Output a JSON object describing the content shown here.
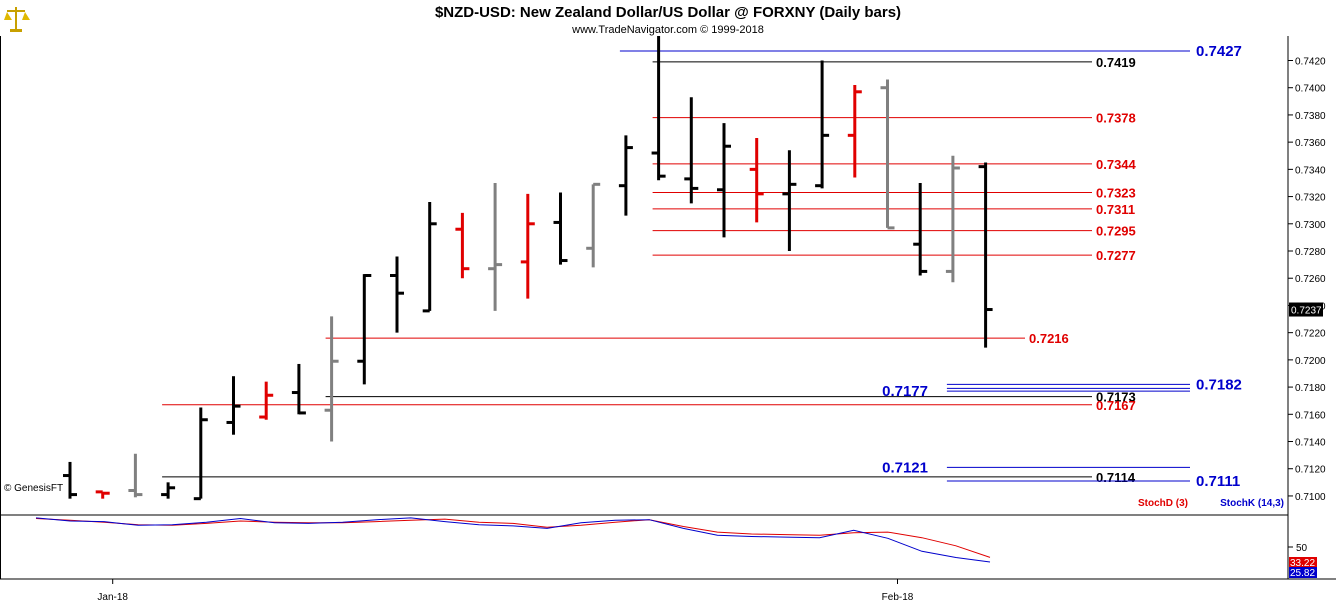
{
  "header": {
    "title": "$NZD-USD:  New Zealand Dollar/US Dollar @ FORXNY  (Daily bars)",
    "subtitle": "www.TradeNavigator.com © 1999-2018"
  },
  "watermark": "© GenesisFT",
  "colors": {
    "black": "#000000",
    "red": "#e00000",
    "gray": "#808080",
    "blue": "#0000cc",
    "stochD": "#e00000",
    "stochK": "#0000cc"
  },
  "chart_data": [
    {
      "type": "ohlc",
      "title": "$NZD-USD:  New Zealand Dollar/US Dollar @ FORXNY  (Daily bars)",
      "ylim": [
        0.7086,
        0.7438
      ],
      "y_ticks": [
        "0.7100",
        "0.7120",
        "0.7140",
        "0.7160",
        "0.7180",
        "0.7200",
        "0.7220",
        "0.7240",
        "0.7260",
        "0.7280",
        "0.7300",
        "0.7320",
        "0.7340",
        "0.7360",
        "0.7380",
        "0.7400",
        "0.7420"
      ],
      "last_price": "0.7237",
      "x_labels": [
        {
          "label": "Jan-18",
          "bar": 1
        },
        {
          "label": "Feb-18",
          "bar": 25
        }
      ],
      "bars": [
        {
          "o": 0.7115,
          "h": 0.7125,
          "l": 0.7098,
          "c": 0.7101,
          "color": "black"
        },
        {
          "o": 0.7103,
          "h": 0.7103,
          "l": 0.7098,
          "c": 0.7102,
          "color": "red"
        },
        {
          "o": 0.7104,
          "h": 0.7131,
          "l": 0.7099,
          "c": 0.7101,
          "color": "gray"
        },
        {
          "o": 0.7101,
          "h": 0.711,
          "l": 0.7098,
          "c": 0.7106,
          "color": "black"
        },
        {
          "o": 0.7098,
          "h": 0.7165,
          "l": 0.7098,
          "c": 0.7156,
          "color": "black"
        },
        {
          "o": 0.7154,
          "h": 0.7188,
          "l": 0.7145,
          "c": 0.7166,
          "color": "black"
        },
        {
          "o": 0.7158,
          "h": 0.7184,
          "l": 0.7156,
          "c": 0.7174,
          "color": "red"
        },
        {
          "o": 0.7176,
          "h": 0.7197,
          "l": 0.716,
          "c": 0.7161,
          "color": "black"
        },
        {
          "o": 0.7163,
          "h": 0.7232,
          "l": 0.714,
          "c": 0.7199,
          "color": "gray"
        },
        {
          "o": 0.7199,
          "h": 0.7263,
          "l": 0.7182,
          "c": 0.7262,
          "color": "black"
        },
        {
          "o": 0.7262,
          "h": 0.7276,
          "l": 0.722,
          "c": 0.7249,
          "color": "black"
        },
        {
          "o": 0.7236,
          "h": 0.7316,
          "l": 0.7236,
          "c": 0.73,
          "color": "black"
        },
        {
          "o": 0.7296,
          "h": 0.7308,
          "l": 0.726,
          "c": 0.7267,
          "color": "red"
        },
        {
          "o": 0.7267,
          "h": 0.733,
          "l": 0.7236,
          "c": 0.727,
          "color": "gray"
        },
        {
          "o": 0.7272,
          "h": 0.7322,
          "l": 0.7245,
          "c": 0.73,
          "color": "red"
        },
        {
          "o": 0.7301,
          "h": 0.7323,
          "l": 0.727,
          "c": 0.7273,
          "color": "black"
        },
        {
          "o": 0.7282,
          "h": 0.7329,
          "l": 0.7268,
          "c": 0.7329,
          "color": "gray"
        },
        {
          "o": 0.7328,
          "h": 0.7365,
          "l": 0.7306,
          "c": 0.7356,
          "color": "black"
        },
        {
          "o": 0.7352,
          "h": 0.7438,
          "l": 0.7332,
          "c": 0.7335,
          "color": "black"
        },
        {
          "o": 0.7333,
          "h": 0.7393,
          "l": 0.7315,
          "c": 0.7326,
          "color": "black"
        },
        {
          "o": 0.7325,
          "h": 0.7374,
          "l": 0.729,
          "c": 0.7357,
          "color": "black"
        },
        {
          "o": 0.734,
          "h": 0.7363,
          "l": 0.7301,
          "c": 0.7322,
          "color": "red"
        },
        {
          "o": 0.7322,
          "h": 0.7354,
          "l": 0.728,
          "c": 0.7329,
          "color": "black"
        },
        {
          "o": 0.7328,
          "h": 0.742,
          "l": 0.7326,
          "c": 0.7365,
          "color": "black"
        },
        {
          "o": 0.7365,
          "h": 0.7402,
          "l": 0.7334,
          "c": 0.7397,
          "color": "red"
        },
        {
          "o": 0.74,
          "h": 0.7406,
          "l": 0.7297,
          "c": 0.7297,
          "color": "gray"
        },
        {
          "o": 0.7285,
          "h": 0.733,
          "l": 0.7262,
          "c": 0.7265,
          "color": "black"
        },
        {
          "o": 0.7265,
          "h": 0.735,
          "l": 0.7257,
          "c": 0.7341,
          "color": "gray"
        },
        {
          "o": 0.7342,
          "h": 0.7345,
          "l": 0.7209,
          "c": 0.7237,
          "color": "black"
        }
      ],
      "levels": [
        {
          "label": "0.7427",
          "value": 0.7427,
          "color": "blue",
          "from_bar": 17,
          "label_side": "right",
          "bold_large": true
        },
        {
          "label": "0.7419",
          "value": 0.7419,
          "color": "black",
          "from_bar": 18,
          "label_side": "right"
        },
        {
          "label": "0.7378",
          "value": 0.7378,
          "color": "red",
          "from_bar": 18,
          "label_side": "right"
        },
        {
          "label": "0.7344",
          "value": 0.7344,
          "color": "red",
          "from_bar": 18,
          "label_side": "right"
        },
        {
          "label": "0.7323",
          "value": 0.7323,
          "color": "red",
          "from_bar": 18,
          "label_side": "right"
        },
        {
          "label": "0.7311",
          "value": 0.7311,
          "color": "red",
          "from_bar": 18,
          "label_side": "right"
        },
        {
          "label": "0.7295",
          "value": 0.7295,
          "color": "red",
          "from_bar": 18,
          "label_side": "right"
        },
        {
          "label": "0.7277",
          "value": 0.7277,
          "color": "red",
          "from_bar": 18,
          "label_side": "right"
        },
        {
          "label": "0.7216",
          "value": 0.7216,
          "color": "red",
          "from_bar": 8,
          "label_side": "right"
        },
        {
          "label": "0.7182",
          "value": 0.7182,
          "color": "blue",
          "from_bar": 27,
          "label_side": "right",
          "bold_large": true,
          "double": true
        },
        {
          "label": "0.7177",
          "value": 0.7177,
          "color": "blue",
          "from_bar": 27,
          "label_side": "left",
          "bold_large": true
        },
        {
          "label": "0.7173",
          "value": 0.7173,
          "color": "black",
          "from_bar": 8,
          "label_side": "right"
        },
        {
          "label": "0.7167",
          "value": 0.7167,
          "color": "red",
          "from_bar": 3,
          "label_side": "right"
        },
        {
          "label": "0.7121",
          "value": 0.7121,
          "color": "blue",
          "from_bar": 27,
          "label_side": "left",
          "bold_large": true
        },
        {
          "label": "0.7114",
          "value": 0.7114,
          "color": "black",
          "from_bar": 3,
          "label_side": "right"
        },
        {
          "label": "0.7111",
          "value": 0.7111,
          "color": "blue",
          "from_bar": 27,
          "label_side": "right",
          "bold_large": true
        }
      ]
    },
    {
      "type": "line",
      "title": "",
      "ylim": [
        0,
        100
      ],
      "y_ticks": [
        "50"
      ],
      "legend": [
        "StochD (3)",
        "StochK (14,3)"
      ],
      "last_values": [
        "33.22",
        "25.82"
      ],
      "series": [
        {
          "name": "StochD (3)",
          "color": "red",
          "values": [
            96,
            93,
            90,
            86,
            85,
            88,
            92,
            90,
            89,
            89,
            91,
            93,
            95,
            90,
            88,
            82,
            85,
            90,
            94,
            83,
            74,
            71,
            70,
            69,
            73,
            74,
            65,
            52,
            33.22
          ]
        },
        {
          "name": "StochK (14,3)",
          "color": "blue",
          "values": [
            97,
            92,
            91,
            85,
            86,
            90,
            96,
            89,
            88,
            90,
            94,
            97,
            91,
            86,
            84,
            80,
            89,
            93,
            94,
            80,
            69,
            67,
            66,
            65,
            77,
            64,
            43,
            33,
            25.82
          ]
        }
      ]
    }
  ]
}
